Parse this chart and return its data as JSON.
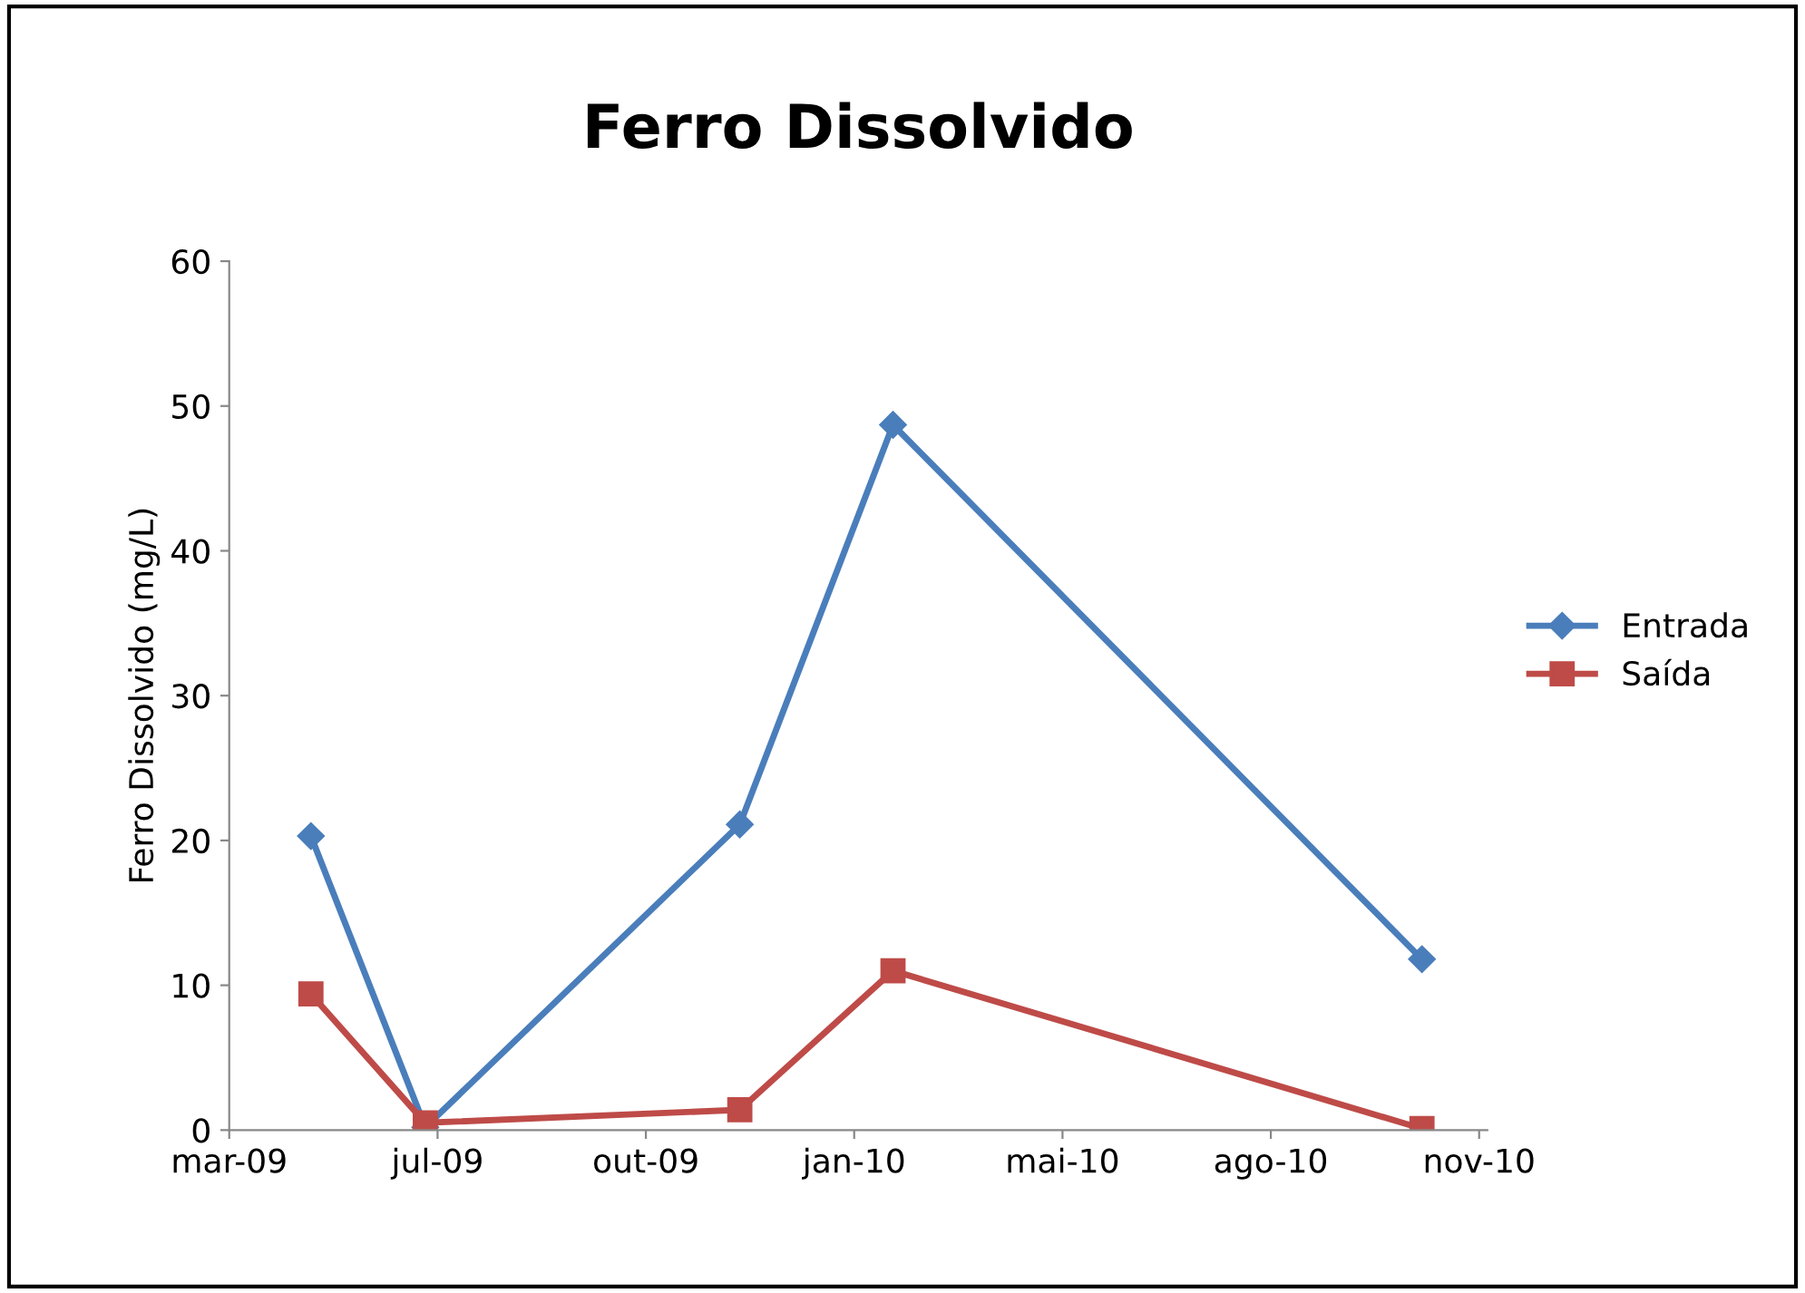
{
  "chart_data": {
    "type": "line",
    "title": "Ferro Dissolvido",
    "ylabel": "Ferro Dissolvido (mg/L)",
    "x": [
      "2009-05-04",
      "2009-06-29",
      "2009-11-30",
      "2010-02-13",
      "2010-10-30"
    ],
    "series": [
      {
        "name": "Entrada",
        "color": "#4a7ebb",
        "marker": "diamond",
        "values": [
          20.3,
          0.2,
          21.1,
          48.7,
          11.8
        ]
      },
      {
        "name": "Saída",
        "color": "#be4b48",
        "marker": "square",
        "values": [
          9.4,
          0.5,
          1.4,
          11.0,
          0.1
        ]
      }
    ],
    "xlim": [
      "2009-03-25",
      "2010-12-01"
    ],
    "xticks": [
      {
        "value": "2009-03-25",
        "label": "mar-09"
      },
      {
        "value": "2009-07-05",
        "label": "jul-09"
      },
      {
        "value": "2009-10-15",
        "label": "out-09"
      },
      {
        "value": "2010-01-25",
        "label": "jan-10"
      },
      {
        "value": "2010-05-07",
        "label": "mai-10"
      },
      {
        "value": "2010-08-17",
        "label": "ago-10"
      },
      {
        "value": "2010-11-27",
        "label": "nov-10"
      }
    ],
    "ylim": [
      0,
      60
    ],
    "yticks": [
      0,
      10,
      20,
      30,
      40,
      50,
      60
    ],
    "grid": false,
    "legend": "right",
    "line_style": "solid"
  }
}
